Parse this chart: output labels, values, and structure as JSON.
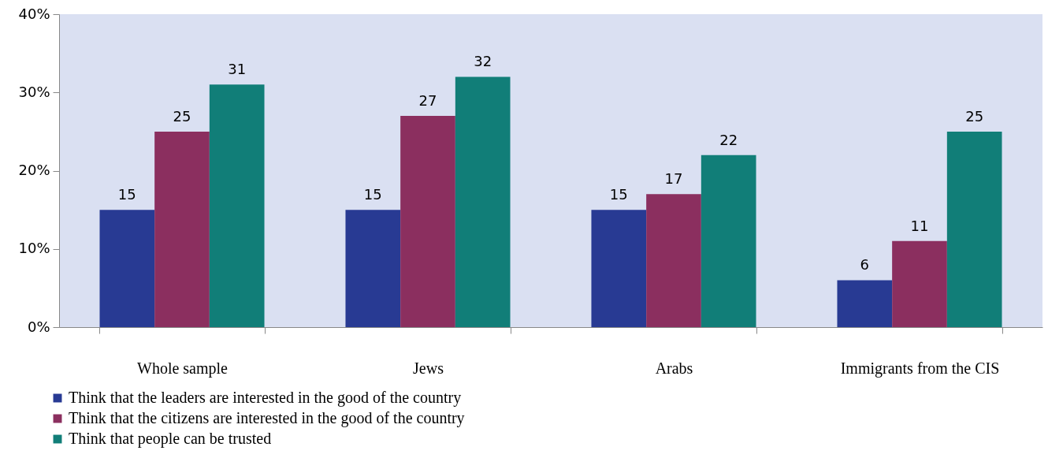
{
  "chart_data": {
    "type": "bar",
    "categories": [
      "Whole sample",
      "Jews",
      "Arabs",
      "Immigrants from the CIS"
    ],
    "series": [
      {
        "name": "Think that the leaders are interested in the good of the country",
        "color": "#283a93",
        "values": [
          15,
          15,
          15,
          6
        ]
      },
      {
        "name": "Think that the citizens are interested in the good of the country",
        "color": "#8b2f5f",
        "values": [
          25,
          27,
          17,
          11
        ]
      },
      {
        "name": "Think that people can be trusted",
        "color": "#117e78",
        "values": [
          31,
          32,
          22,
          25
        ]
      }
    ],
    "ylim": [
      0,
      40
    ],
    "yticks": [
      {
        "value": 0,
        "label": "0%"
      },
      {
        "value": 10,
        "label": "10%"
      },
      {
        "value": 20,
        "label": "20%"
      },
      {
        "value": 30,
        "label": "30%"
      },
      {
        "value": 40,
        "label": "40%"
      }
    ],
    "grid": false,
    "legend": "bottom",
    "data_labels": true
  }
}
